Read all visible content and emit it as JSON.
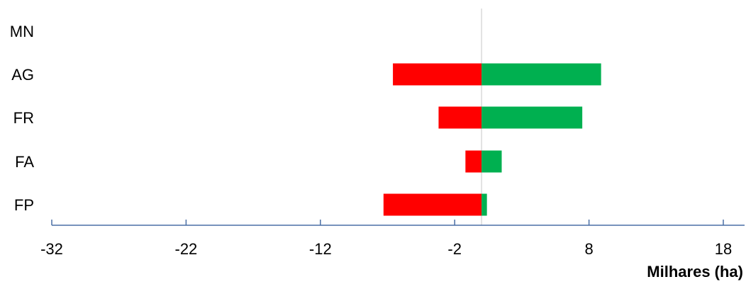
{
  "chart_data": {
    "type": "bar",
    "orientation": "horizontal",
    "stacked": true,
    "categories": [
      "MN",
      "AG",
      "FR",
      "FA",
      "FP"
    ],
    "series": [
      {
        "color": "#ff0000",
        "values": [
          0,
          -6.6,
          -3.2,
          -1.2,
          -7.3
        ]
      },
      {
        "color": "#00b050",
        "values": [
          0,
          8.9,
          7.5,
          1.5,
          0.4
        ]
      }
    ],
    "xlim": [
      -32,
      19
    ],
    "x_ticks": [
      -32,
      -22,
      -12,
      -2,
      8,
      18
    ],
    "x_tick_labels": [
      "-32",
      "-22",
      "-12",
      "-2",
      "8",
      "18"
    ],
    "xlabel": "Milhares (ha)",
    "zero_line": 0,
    "grid": false,
    "legend": "none",
    "colors": {
      "axis": "#4a6fa5",
      "zero_line": "#d9d9d9",
      "text": "#000000"
    }
  }
}
